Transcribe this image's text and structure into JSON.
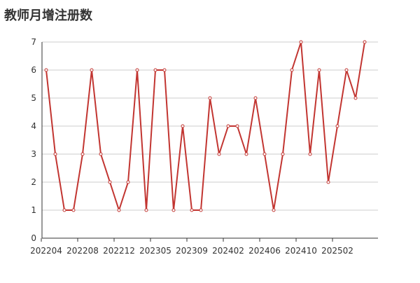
{
  "chart_data": {
    "type": "line",
    "title": "教师月增注册数",
    "categories": [
      "202204",
      null,
      null,
      null,
      "202208",
      null,
      null,
      null,
      "202212",
      null,
      null,
      null,
      "202305",
      null,
      null,
      null,
      "202309",
      null,
      null,
      null,
      "202402",
      null,
      null,
      null,
      "202406",
      null,
      null,
      null,
      "202410",
      null,
      null,
      null,
      "202502",
      null,
      null,
      null
    ],
    "series": [
      {
        "name": "教师月增注册数",
        "color": "#c23531",
        "values": [
          6,
          3,
          1,
          1,
          3,
          6,
          3,
          2,
          1,
          2,
          6,
          1,
          6,
          6,
          1,
          4,
          1,
          1,
          5,
          3,
          4,
          4,
          3,
          5,
          3,
          1,
          3,
          6,
          7,
          3,
          6,
          2,
          4,
          6,
          5,
          7
        ]
      }
    ],
    "ylim": [
      0,
      7
    ],
    "yticks": [
      0,
      1,
      2,
      3,
      4,
      5,
      6,
      7
    ],
    "grid": true
  }
}
